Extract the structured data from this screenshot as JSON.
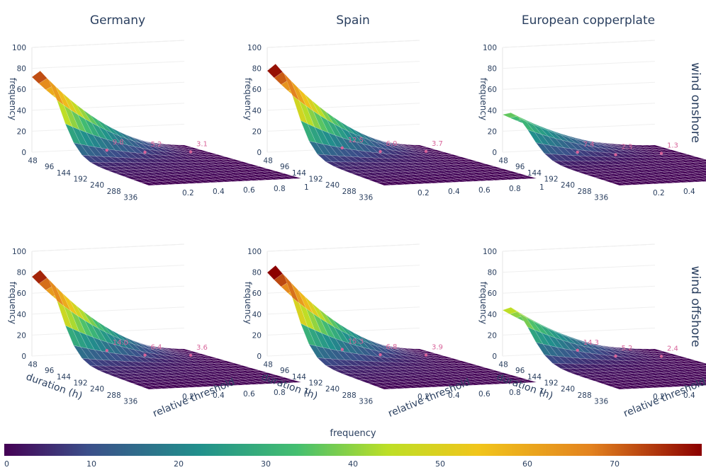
{
  "chart_data": {
    "type": "surface3d",
    "columns": [
      "Germany",
      "Spain",
      "European copperplate"
    ],
    "rows": [
      "wind onshore",
      "wind offshore"
    ],
    "axes": {
      "duration": {
        "title": "duration (h)",
        "ticks": [
          "48",
          "96",
          "144",
          "192",
          "240",
          "288",
          "336"
        ]
      },
      "threshold": {
        "title": "relative threshold",
        "ticks": [
          "0.2",
          "0.4",
          "0.6",
          "0.8",
          "1"
        ]
      },
      "frequency": {
        "title": "frequency",
        "ticks": [
          "0",
          "20",
          "40",
          "60",
          "80",
          "100"
        ],
        "range": [
          0,
          100
        ]
      }
    },
    "colorbar": {
      "title": "frequency",
      "ticks": [
        "0",
        "10",
        "20",
        "30",
        "40",
        "50",
        "60",
        "70"
      ],
      "range": [
        0,
        80
      ],
      "colorscale": "viridis-to-red"
    },
    "panels": [
      {
        "row": 0,
        "col": 0,
        "peak": 72,
        "annotations": [
          "9.8",
          "5.2",
          "3.1"
        ],
        "annotation_values": [
          9.8,
          5.2,
          3.1
        ]
      },
      {
        "row": 0,
        "col": 1,
        "peak": 78,
        "annotations": [
          "12.5",
          "6.0",
          "3.7"
        ],
        "annotation_values": [
          12.5,
          6.0,
          3.7
        ]
      },
      {
        "row": 0,
        "col": 2,
        "peak": 36,
        "annotations": [
          "7.4",
          "2.3",
          "1.3"
        ],
        "annotation_values": [
          7.4,
          2.3,
          1.3
        ]
      },
      {
        "row": 1,
        "col": 0,
        "peak": 76,
        "annotations": [
          "14.0",
          "6.4",
          "3.6"
        ],
        "annotation_values": [
          14.0,
          6.4,
          3.6
        ]
      },
      {
        "row": 1,
        "col": 1,
        "peak": 80,
        "annotations": [
          "15.3",
          "6.8",
          "3.9"
        ],
        "annotation_values": [
          15.3,
          6.8,
          3.9
        ]
      },
      {
        "row": 1,
        "col": 2,
        "peak": 44,
        "annotations": [
          "14.3",
          "5.2",
          "2.4"
        ],
        "annotation_values": [
          14.3,
          5.2,
          2.4
        ]
      }
    ]
  }
}
